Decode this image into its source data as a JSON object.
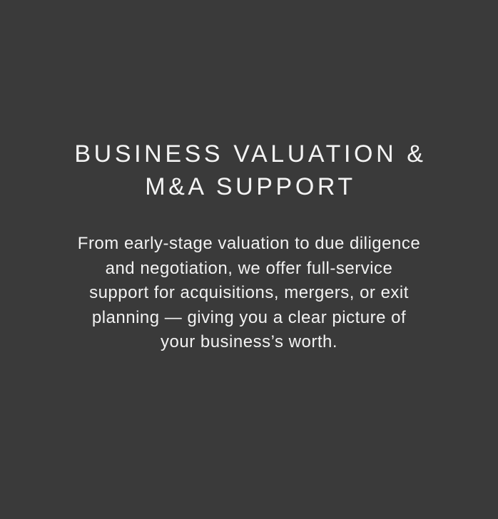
{
  "card": {
    "title_lines": [
      "BUSINESS VALUATION &",
      "M&A SUPPORT"
    ],
    "description_lines": [
      "From early-stage valuation to due diligence",
      "and negotiation, we offer full-service",
      "support for acquisitions, mergers, or exit",
      "planning — giving you a clear picture of",
      "your business’s worth."
    ]
  },
  "colors": {
    "background": "#3a3a3a",
    "text": "#f4f4f4"
  }
}
